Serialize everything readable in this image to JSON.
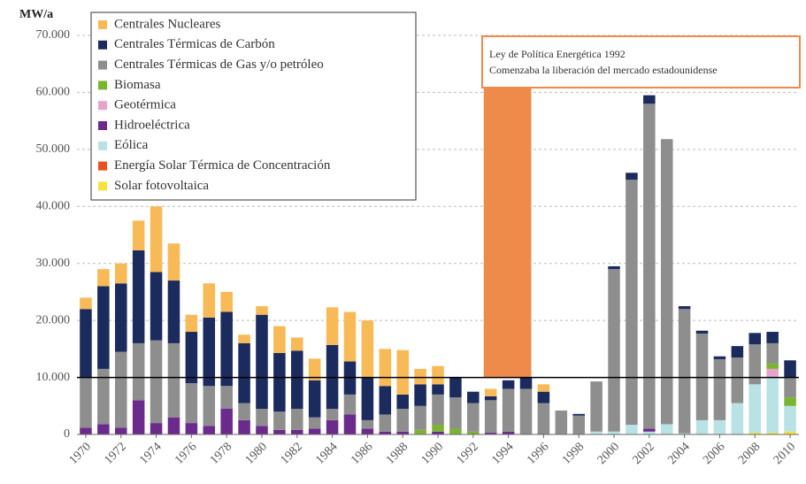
{
  "chart_data": {
    "type": "stacked_bar",
    "y_label": "MW/a",
    "x": [
      1970,
      1971,
      1972,
      1973,
      1974,
      1975,
      1976,
      1977,
      1978,
      1979,
      1980,
      1981,
      1982,
      1983,
      1984,
      1985,
      1986,
      1987,
      1988,
      1989,
      1990,
      1991,
      1992,
      1993,
      1994,
      1995,
      1996,
      1997,
      1998,
      1999,
      2000,
      2001,
      2002,
      2003,
      2004,
      2005,
      2006,
      2007,
      2008,
      2009,
      2010
    ],
    "xlim": [
      1969.5,
      2010.5
    ],
    "xticks": [
      1970,
      1972,
      1974,
      1976,
      1978,
      1980,
      1982,
      1984,
      1986,
      1988,
      1990,
      1992,
      1994,
      1996,
      1998,
      2000,
      2002,
      2004,
      2006,
      2008,
      2010
    ],
    "ylim": [
      0,
      70000
    ],
    "yticks": [
      0,
      {
        "value": 10000,
        "label": "10.000"
      },
      {
        "value": 20000,
        "label": "20.000"
      },
      {
        "value": 30000,
        "label": "30.000"
      },
      {
        "value": 40000,
        "label": "40.000"
      },
      {
        "value": 50000,
        "label": "50.000"
      },
      {
        "value": 60000,
        "label": "60.000"
      },
      {
        "value": 70000,
        "label": "70.000"
      }
    ],
    "grid": true,
    "hline": 10000,
    "shade_x": [
      1992.6,
      1995.3
    ],
    "annotation": [
      "Ley de Política Energética 1992",
      "Comenzaba la liberación del mercado estadounidense"
    ],
    "legend": "upper left",
    "series": [
      {
        "name": "Solar fotovoltaica",
        "color": "#f3e33a",
        "values": [
          0,
          0,
          0,
          0,
          0,
          0,
          0,
          0,
          0,
          0,
          0,
          0,
          0,
          0,
          0,
          0,
          0,
          0,
          0,
          0,
          0,
          0,
          0,
          0,
          0,
          0,
          0,
          0,
          0,
          0,
          0,
          0,
          0,
          0,
          0,
          0,
          0,
          0,
          300,
          300,
          500
        ]
      },
      {
        "name": "Energía Solar Térmica de Concentración",
        "color": "#e8521e",
        "values": [
          0,
          0,
          0,
          0,
          0,
          0,
          0,
          0,
          0,
          0,
          0,
          0,
          0,
          0,
          0,
          0,
          0,
          0,
          0,
          0,
          0,
          0,
          0,
          0,
          0,
          0,
          0,
          0,
          0,
          0,
          0,
          0,
          0,
          0,
          0,
          0,
          0,
          0,
          0,
          0,
          0
        ]
      },
      {
        "name": "Eólica",
        "color": "#b9e2e4",
        "values": [
          0,
          0,
          0,
          0,
          0,
          0,
          0,
          0,
          0,
          0,
          0,
          0,
          0,
          0,
          0,
          0,
          0,
          0,
          0,
          0,
          0,
          0,
          0,
          0,
          0,
          0,
          0,
          0,
          0,
          500,
          500,
          1700,
          500,
          1800,
          200,
          2500,
          2500,
          5500,
          8500,
          9700,
          4500
        ]
      },
      {
        "name": "Hidroeléctrica",
        "color": "#6b2b8c",
        "values": [
          1200,
          1800,
          1200,
          6000,
          2000,
          3000,
          2000,
          1500,
          4500,
          2500,
          1500,
          800,
          800,
          1000,
          2500,
          3500,
          1000,
          500,
          500,
          0,
          500,
          0,
          0,
          300,
          500,
          0,
          0,
          0,
          0,
          0,
          0,
          0,
          500,
          0,
          0,
          0,
          0,
          0,
          0,
          0,
          0
        ]
      },
      {
        "name": "Geotérmica",
        "color": "#e6a3cb",
        "values": [
          0,
          0,
          0,
          0,
          0,
          0,
          0,
          0,
          0,
          0,
          0,
          0,
          0,
          0,
          0,
          0,
          0,
          0,
          0,
          0,
          0,
          0,
          0,
          0,
          0,
          0,
          0,
          0,
          0,
          0,
          0,
          0,
          0,
          0,
          0,
          0,
          0,
          0,
          0,
          1500,
          0
        ]
      },
      {
        "name": "Biomasa",
        "color": "#7bb42f",
        "values": [
          0,
          0,
          0,
          0,
          0,
          0,
          0,
          0,
          0,
          0,
          0,
          0,
          0,
          0,
          0,
          0,
          0,
          0,
          0,
          800,
          1200,
          1000,
          500,
          0,
          0,
          0,
          0,
          0,
          0,
          0,
          0,
          0,
          0,
          0,
          0,
          0,
          0,
          0,
          0,
          1000,
          1500
        ]
      },
      {
        "name": "Centrales Térmicas de Gas y/o petróleo",
        "color": "#8e8e8e",
        "values": [
          8800,
          9700,
          13300,
          10000,
          14500,
          13000,
          7000,
          7000,
          4000,
          3000,
          3000,
          3200,
          3700,
          2000,
          2000,
          3500,
          1500,
          3000,
          4000,
          4200,
          5300,
          5500,
          5000,
          5700,
          7500,
          8000,
          5500,
          4200,
          3300,
          8800,
          28500,
          43000,
          57000,
          50000,
          21800,
          15200,
          10700,
          8000,
          7000,
          3500,
          3500
        ]
      },
      {
        "name": "Centrales Térmicas de Carbón",
        "color": "#1c2b5e",
        "values": [
          12000,
          14500,
          12000,
          16300,
          12000,
          11000,
          9000,
          12000,
          13000,
          10500,
          16500,
          10300,
          10200,
          6500,
          11200,
          5800,
          7500,
          5000,
          2500,
          3800,
          1800,
          3500,
          2000,
          700,
          1500,
          2000,
          2000,
          0,
          300,
          0,
          500,
          1200,
          1500,
          0,
          500,
          500,
          500,
          2000,
          2000,
          2000,
          3000
        ]
      },
      {
        "name": "Centrales Nucleares",
        "color": "#f7ba57",
        "values": [
          2000,
          3000,
          3500,
          5200,
          11500,
          6500,
          3000,
          6000,
          3500,
          1500,
          1500,
          4700,
          2300,
          3800,
          6600,
          8700,
          10000,
          6500,
          7800,
          2700,
          3200,
          0,
          0,
          1300,
          0,
          0,
          1300,
          0,
          0,
          0,
          0,
          0,
          0,
          0,
          0,
          0,
          0,
          0,
          0,
          0,
          0
        ]
      }
    ]
  }
}
